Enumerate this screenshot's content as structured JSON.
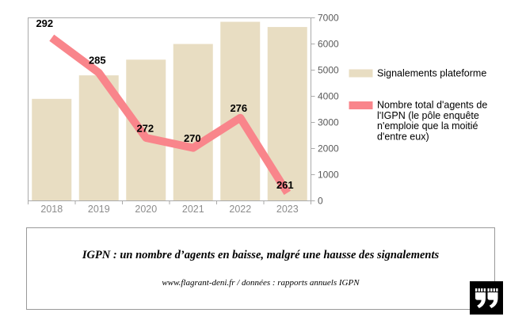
{
  "chart_data": {
    "type": "combo-bar-line",
    "title": "",
    "categories": [
      "2018",
      "2019",
      "2020",
      "2021",
      "2022",
      "2023"
    ],
    "series": [
      {
        "name": "Signalements plateforme",
        "type": "bar",
        "axis": "right",
        "color": "#e8ddc2",
        "values": [
          3900,
          4800,
          5400,
          6000,
          6850,
          6650
        ]
      },
      {
        "name": "Nombre total d'agents de l'IGPN (le pôle enquête n'emploie que la moitié d'entre eux)",
        "type": "line",
        "axis": "hidden",
        "color": "#f9858b",
        "values": [
          292,
          285,
          272,
          270,
          276,
          261
        ],
        "data_labels": true
      }
    ],
    "right_axis": {
      "min": 0,
      "max": 7000,
      "ticks": [
        0,
        1000,
        2000,
        3000,
        4000,
        5000,
        6000,
        7000
      ]
    },
    "hidden_line_axis": {
      "min": 259.4,
      "max": 296.0,
      "visible": false
    },
    "grid": false,
    "legend": {
      "position": "right",
      "items": [
        {
          "color": "#e8ddc2",
          "lines": [
            "Signalements plateforme"
          ]
        },
        {
          "color": "#f9858b",
          "lines": [
            "Nombre total d'agents de",
            "l'IGPN (le pôle enquête",
            "n'emploie que la moitié",
            "d'entre eux)"
          ]
        }
      ]
    }
  },
  "caption": {
    "title": "IGPN : un nombre d’agents en baisse, malgré une hausse des signalements",
    "source": "www.flagrant-deni.fr / données : rapports annuels IGPN"
  },
  "logo": {
    "icon": "double-quote-marks",
    "background": "#000000",
    "glyph_color": "#ffffff"
  },
  "colors": {
    "background": "#ffffff",
    "bar": "#e8ddc2",
    "line": "#f9858b",
    "plot_border": "#aaaaaa",
    "axis_value_text": "#5a5a5a",
    "axis_year_text": "#8c8c8c",
    "data_label_text": "#000000",
    "caption_border": "#999999"
  }
}
